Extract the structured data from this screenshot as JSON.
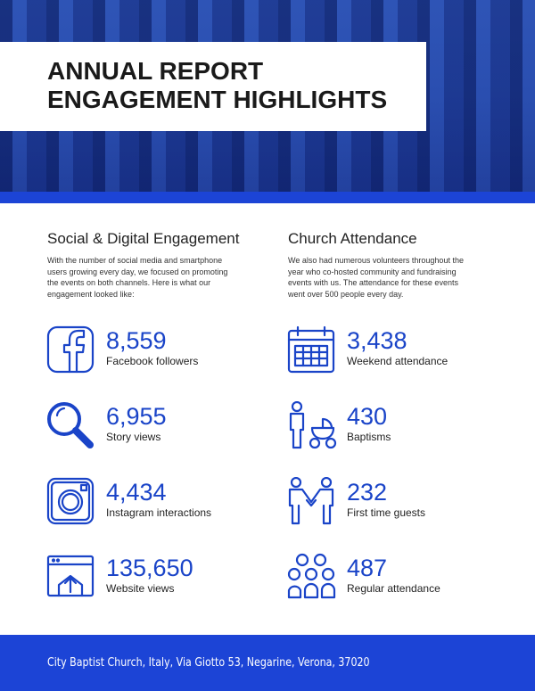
{
  "header": {
    "title_lines": [
      "ANNUAL REPORT",
      "ENGAGEMENT HIGHLIGHTS"
    ]
  },
  "sections": [
    {
      "heading": "Social & Digital Engagement",
      "body_lines": [
        "With the number of social media and smartphone",
        "users growing every day, we focused on promoting",
        "the events on both channels. Here is what our",
        "engagement looked like:"
      ],
      "stats": [
        {
          "value": "8,559",
          "label": "Facebook followers"
        },
        {
          "value": "6,955",
          "label": "Story views"
        },
        {
          "value": "4,434",
          "label": "Instagram interactions"
        },
        {
          "value": "135,650",
          "label": "Website views"
        }
      ]
    },
    {
      "heading": "Church Attendance",
      "body_lines": [
        "We also had numerous volunteers throughout the",
        "year who co-hosted community and fundraising",
        "events with us. The attendance for these events",
        "went over 500 people every day."
      ],
      "stats": [
        {
          "value": "3,438",
          "label": "Weekend attendance"
        },
        {
          "value": "430",
          "label": "Baptisms"
        },
        {
          "value": "232",
          "label": "First time guests"
        },
        {
          "value": "487",
          "label": "Regular attendance"
        }
      ]
    }
  ],
  "footer": {
    "text": "City Baptist Church, Italy, Via Giotto 53, Negarine, Verona, 37020"
  }
}
